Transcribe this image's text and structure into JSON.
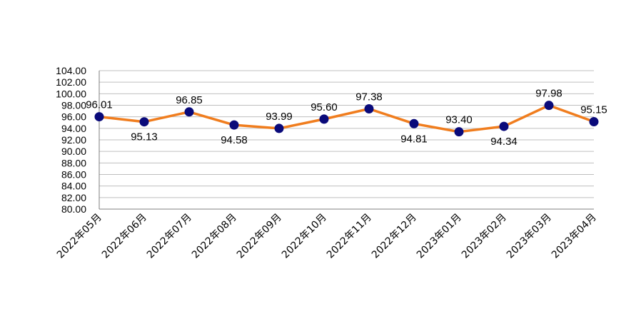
{
  "chart_data": {
    "type": "line",
    "categories": [
      "2022年05月",
      "2022年06月",
      "2022年07月",
      "2022年08月",
      "2022年09月",
      "2022年10月",
      "2022年11月",
      "2022年12月",
      "2023年01月",
      "2023年02月",
      "2023年03月",
      "2023年04月"
    ],
    "series": [
      {
        "values": [
          96.01,
          95.13,
          96.85,
          94.58,
          93.99,
          95.6,
          97.38,
          94.81,
          93.4,
          94.34,
          97.98,
          95.15
        ],
        "data_labels": [
          "96.01",
          "95.13",
          "96.85",
          "94.58",
          "93.99",
          "95.60",
          "97.38",
          "94.81",
          "93.40",
          "94.34",
          "97.98",
          "95.15"
        ],
        "label_side": [
          "above",
          "below",
          "above",
          "below",
          "above",
          "above",
          "above",
          "below",
          "above",
          "below",
          "above",
          "above"
        ],
        "line_color": "#f07d1e",
        "marker_color": "#0a0a7a"
      }
    ],
    "y_ticks": [
      "80.00",
      "82.00",
      "84.00",
      "86.00",
      "88.00",
      "90.00",
      "92.00",
      "94.00",
      "96.00",
      "98.00",
      "100.00",
      "102.00",
      "104.00"
    ],
    "ylim": [
      80,
      104
    ],
    "y_step": 2,
    "grid": true,
    "grid_color": "#bfbfbf",
    "axis_color": "#7f7f7f",
    "title": "",
    "xlabel": "",
    "ylabel": ""
  }
}
